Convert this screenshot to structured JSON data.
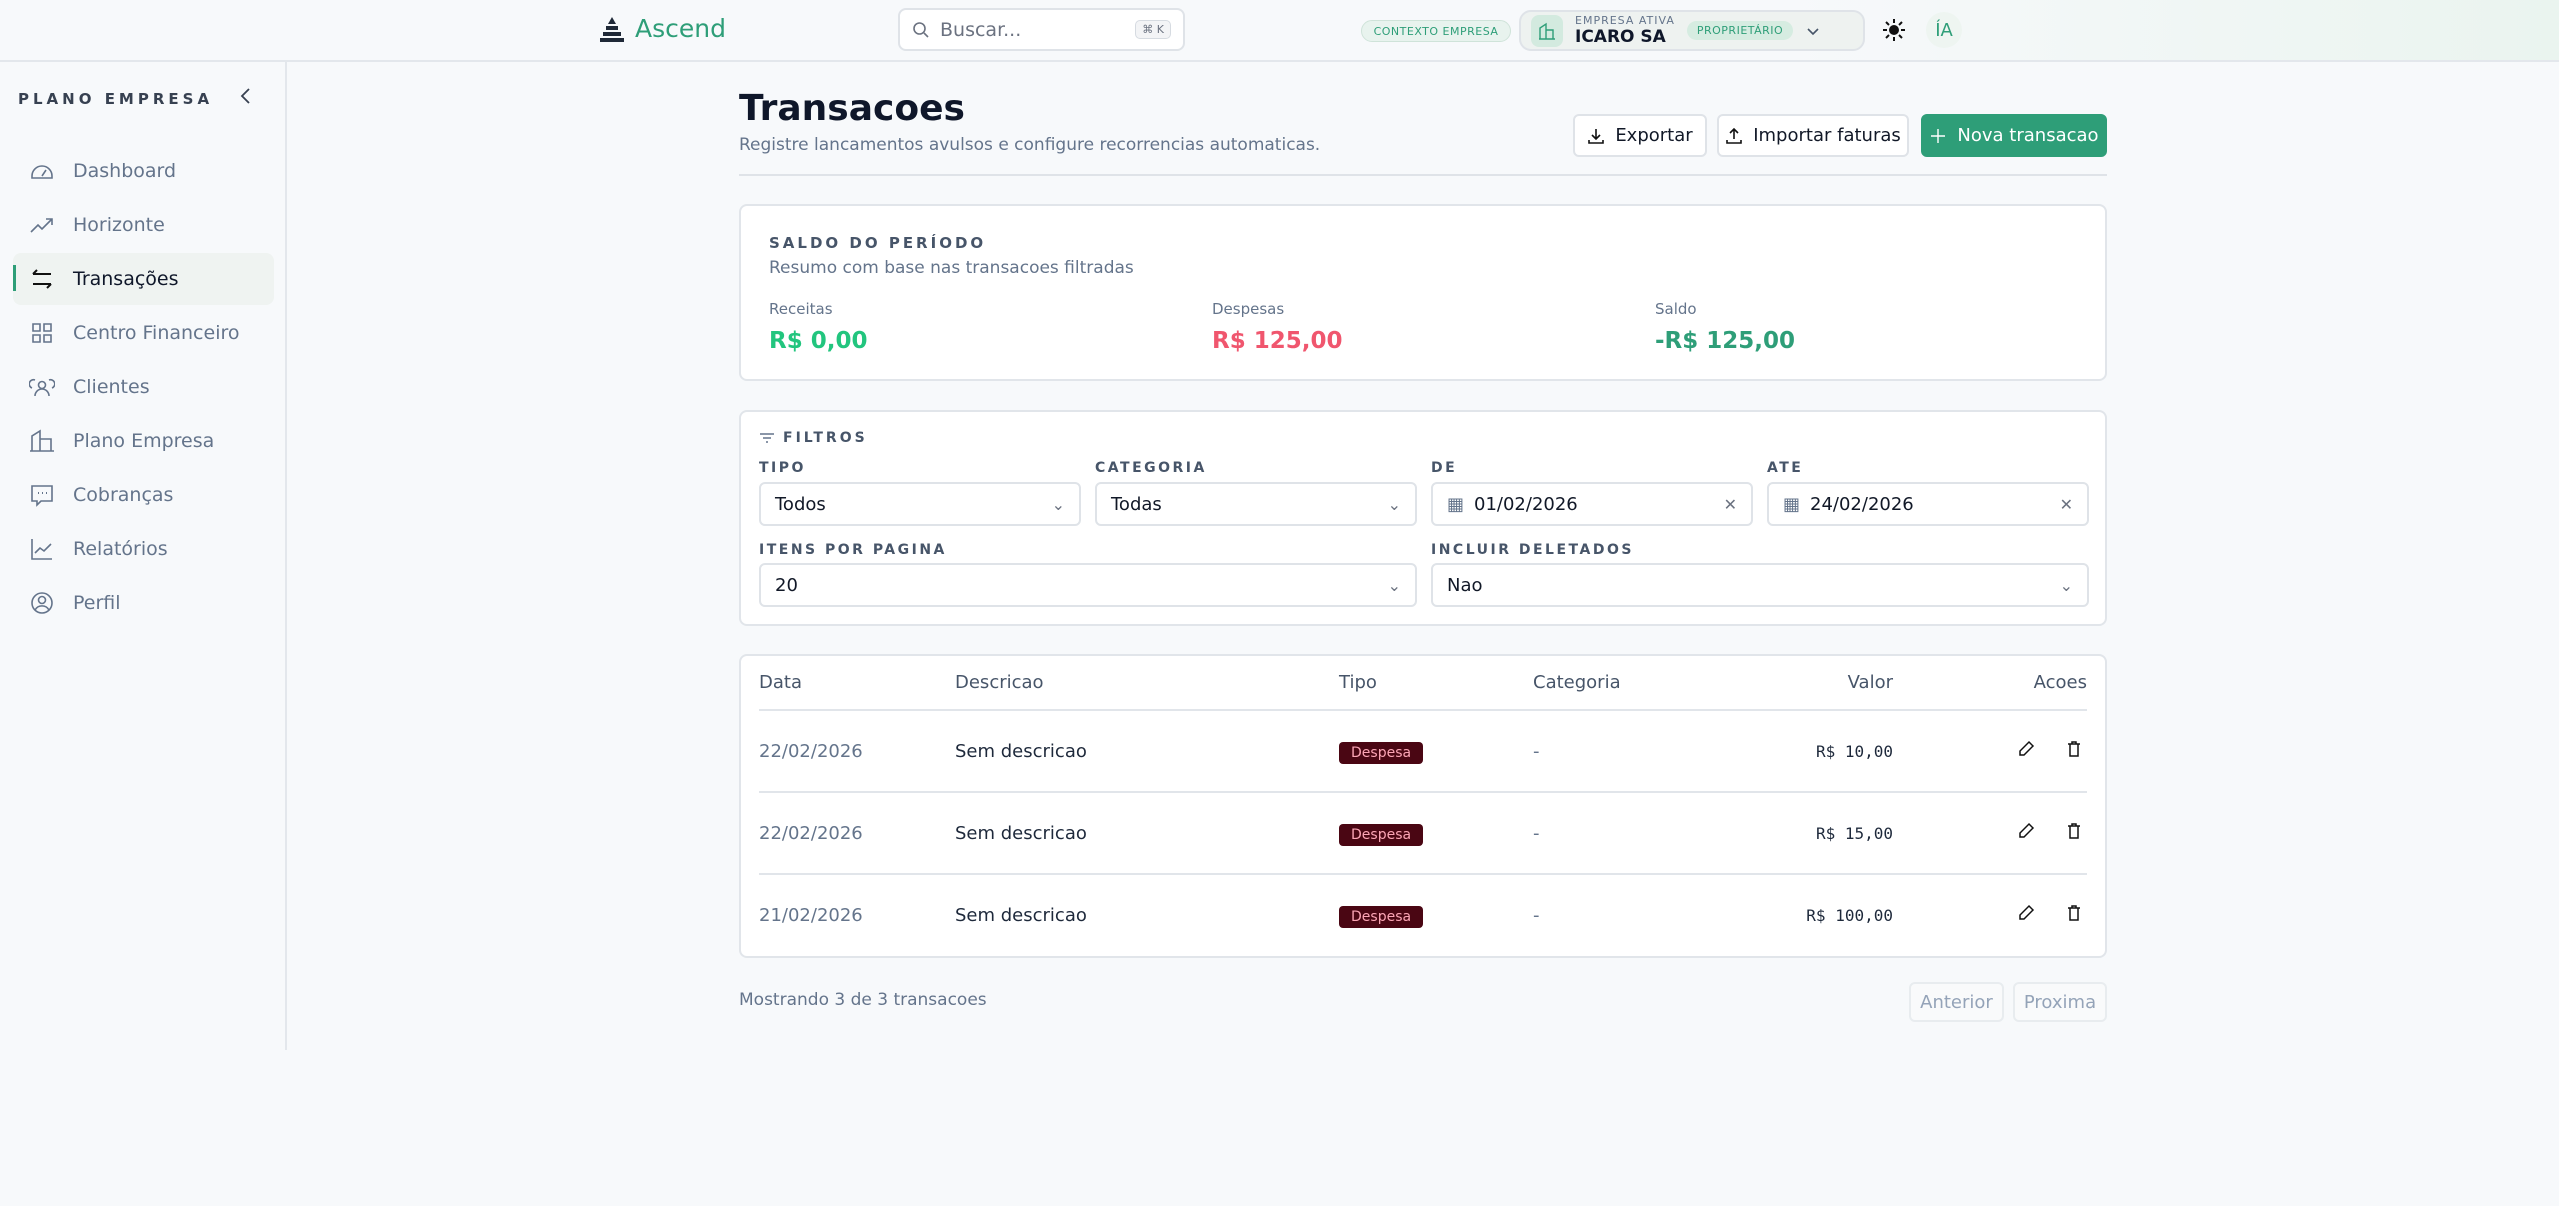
{
  "header": {
    "brand": "Ascend",
    "search_placeholder": "Buscar...",
    "search_shortcut": "⌘ K",
    "context_badge": "CONTEXTO EMPRESA",
    "company_label": "EMPRESA ATIVA",
    "company_name": "ICARO SA",
    "role_badge": "PROPRIETÁRIO",
    "ia_label": "ÍA"
  },
  "sidebar": {
    "title": "PLANO EMPRESA",
    "items": [
      {
        "label": "Dashboard",
        "icon": "gauge-icon"
      },
      {
        "label": "Horizonte",
        "icon": "trending-up-icon"
      },
      {
        "label": "Transações",
        "icon": "arrows-exchange-icon",
        "active": true
      },
      {
        "label": "Centro Financeiro",
        "icon": "grid-icon"
      },
      {
        "label": "Clientes",
        "icon": "users-icon"
      },
      {
        "label": "Plano Empresa",
        "icon": "building-icon"
      },
      {
        "label": "Cobranças",
        "icon": "message-icon"
      },
      {
        "label": "Relatórios",
        "icon": "chart-line-icon"
      },
      {
        "label": "Perfil",
        "icon": "user-circle-icon"
      }
    ]
  },
  "page": {
    "title": "Transacoes",
    "subtitle": "Registre lancamentos avulsos e configure recorrencias automaticas.",
    "export_label": "Exportar",
    "import_label": "Importar faturas",
    "new_label": "Nova transacao"
  },
  "summary": {
    "title": "SALDO DO PERÍODO",
    "subtitle": "Resumo com base nas transacoes filtradas",
    "items": [
      {
        "label": "Receitas",
        "value": "R$ 0,00",
        "color": "#22c57e"
      },
      {
        "label": "Despesas",
        "value": "R$ 125,00",
        "color": "#f0566e"
      },
      {
        "label": "Saldo",
        "value": "-R$ 125,00",
        "color": "#2e9e78"
      }
    ]
  },
  "filters": {
    "title": "FILTROS",
    "tipo_label": "TIPO",
    "tipo_value": "Todos",
    "categoria_label": "CATEGORIA",
    "categoria_value": "Todas",
    "de_label": "DE",
    "de_value": "01/02/2026",
    "ate_label": "ATE",
    "ate_value": "24/02/2026",
    "itens_label": "ITENS POR PAGINA",
    "itens_value": "20",
    "deletados_label": "INCLUIR DELETADOS",
    "deletados_value": "Nao"
  },
  "table": {
    "headers": [
      "Data",
      "Descricao",
      "Tipo",
      "Categoria",
      "Valor",
      "Acoes"
    ],
    "rows": [
      {
        "data": "22/02/2026",
        "descricao": "Sem descricao",
        "tipo": "Despesa",
        "categoria": "-",
        "valor": "R$ 10,00"
      },
      {
        "data": "22/02/2026",
        "descricao": "Sem descricao",
        "tipo": "Despesa",
        "categoria": "-",
        "valor": "R$ 15,00"
      },
      {
        "data": "21/02/2026",
        "descricao": "Sem descricao",
        "tipo": "Despesa",
        "categoria": "-",
        "valor": "R$ 100,00"
      }
    ]
  },
  "footer": {
    "showing": "Mostrando 3 de 3 transacoes",
    "prev": "Anterior",
    "next": "Proxima"
  }
}
